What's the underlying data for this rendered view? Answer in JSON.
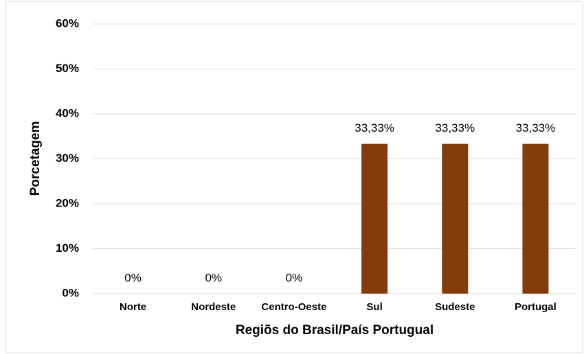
{
  "chart_data": {
    "type": "bar",
    "categories": [
      "Norte",
      "Nordeste",
      "Centro-Oeste",
      "Sul",
      "Sudeste",
      "Portugal"
    ],
    "values": [
      0,
      0,
      0,
      33.33,
      33.33,
      33.33
    ],
    "value_labels": [
      "0%",
      "0%",
      "0%",
      "33,33%",
      "33,33%",
      "33,33%"
    ],
    "color": "#843c0c",
    "x_label": "Regiõs do Brasil/País Portugual",
    "y_label": "Porcetagem",
    "ylim": [
      0,
      60
    ],
    "yticks": [
      {
        "value": 0,
        "label": "0%"
      },
      {
        "value": 10,
        "label": "10%"
      },
      {
        "value": 20,
        "label": "20%"
      },
      {
        "value": 30,
        "label": "30%"
      },
      {
        "value": 40,
        "label": "40%"
      },
      {
        "value": 50,
        "label": "50%"
      },
      {
        "value": 60,
        "label": "60%"
      }
    ],
    "grid": true
  }
}
